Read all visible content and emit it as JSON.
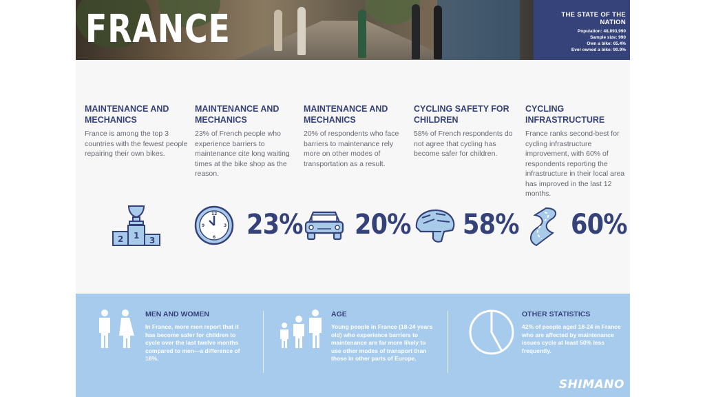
{
  "header": {
    "title": "FRANCE",
    "nation_box": {
      "heading": "THE STATE OF THE NATION",
      "stats": [
        "Population: 48,893,990",
        "Sample size: 990",
        "Own a bike: 65.4%",
        "Ever owned a bike: 90.9%"
      ]
    }
  },
  "columns": [
    {
      "heading": "MAINTENANCE AND MECHANICS",
      "text": "France is among the top 3 countries with the fewest people repairing their own bikes.",
      "icon": "podium-trophy-icon",
      "percent": ""
    },
    {
      "heading": "MAINTENANCE AND MECHANICS",
      "text": "23% of French people who experience barriers to maintenance cite long waiting times at the bike shop as the reason.",
      "icon": "clock-icon",
      "percent": "23%"
    },
    {
      "heading": "MAINTENANCE AND MECHANICS",
      "text": "20% of respondents who face barriers to maintenance rely more on other modes of transportation as a result.",
      "icon": "car-icon",
      "percent": "20%"
    },
    {
      "heading": "CYCLING SAFETY FOR CHILDREN",
      "text": "58% of French respondents do not agree that cycling has become safer for children.",
      "icon": "helmet-icon",
      "percent": "58%"
    },
    {
      "heading": "CYCLING INFRASTRUCTURE",
      "text": "France ranks second-best for cycling infrastructure improvement, with 60% of respondents reporting the infrastructure in their local area has improved in the last 12 months.",
      "icon": "road-icon",
      "percent": "60%"
    }
  ],
  "bottom": {
    "sections": [
      {
        "heading": "MEN AND WOMEN",
        "text": "In France, more men report that it has become safer for children to cycle over the last twelve months compared to men—a difference of 16%.",
        "icon": "man-woman-icon"
      },
      {
        "heading": "AGE",
        "text": "Young people in France (18-24 years old) who experience barriers to maintenance are far more likely to use other modes of transport than those in other parts of Europe.",
        "icon": "people-ages-icon"
      },
      {
        "heading": "OTHER STATISTICS",
        "text": "42% of people aged 18-24 in France who are affected by maintenance issues cycle at least 50% less frequently.",
        "icon": "pie-chart-icon",
        "pie_fraction": 0.42
      }
    ],
    "brand": "SHIMANO"
  },
  "colors": {
    "navy": "#35427a",
    "light_blue": "#a7cbec",
    "icon_fill": "#a9cbea",
    "text_gray": "#666a70"
  }
}
